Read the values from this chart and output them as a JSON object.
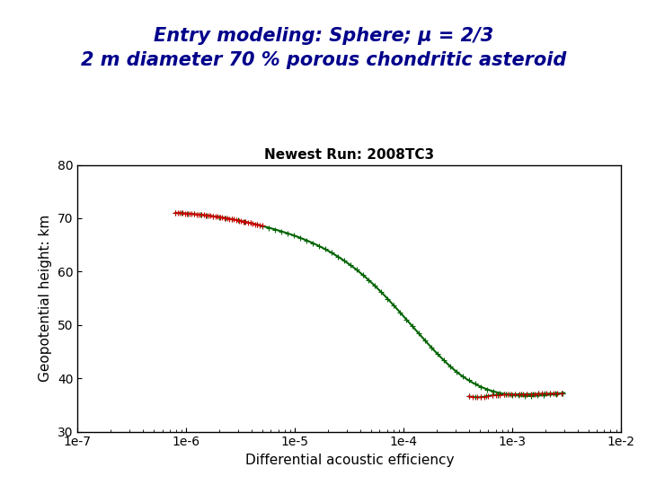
{
  "title_line1": "Entry modeling: Sphere; μ = 2/3",
  "title_line2": "2 m diameter 70 % porous chondritic asteroid",
  "plot_title": "Newest Run: 2008TC3",
  "xlabel": "Differential acoustic efficiency",
  "ylabel": "Geopotential height: km",
  "xlim_log": [
    -7,
    -2
  ],
  "ylim": [
    30,
    80
  ],
  "yticks": [
    30,
    40,
    50,
    60,
    70,
    80
  ],
  "xtick_labels": [
    "1e-7",
    "1e-6",
    "1e-5",
    "1e-4",
    "1e-3",
    "1e-2"
  ],
  "bg_color": "#ffffff",
  "curve_color_green": "#006400",
  "curve_color_red": "#cc0000",
  "title_color": "#00008B"
}
